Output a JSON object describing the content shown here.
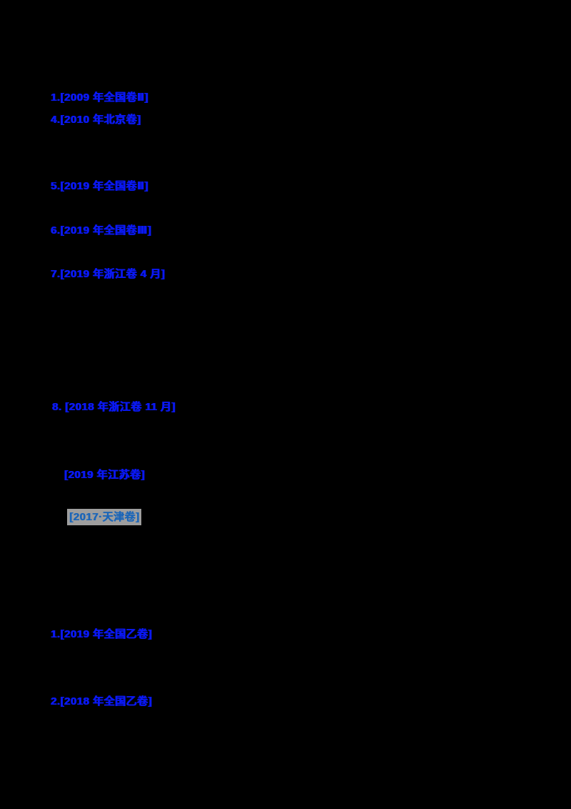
{
  "page": {
    "background_color": "#000000",
    "link_color": "#0a18f2",
    "highlight_background_color": "#9e9e9e",
    "highlight_link_color": "#1c66b8"
  },
  "links": [
    {
      "label": "1.[2009 年全国卷Ⅱ]",
      "highlighted": false
    },
    {
      "label": "4.[2010 年北京卷]",
      "highlighted": false
    },
    {
      "label": "5.[2019 年全国卷Ⅱ]",
      "highlighted": false
    },
    {
      "label": "6.[2019 年全国卷Ⅲ]",
      "highlighted": false
    },
    {
      "label": "7.[2019 年浙江卷 4 月]",
      "highlighted": false
    },
    {
      "label": "8. [2018 年浙江卷 11 月]",
      "highlighted": false
    },
    {
      "label": "[2019 年江苏卷]",
      "highlighted": false
    },
    {
      "label": "[2017·天津卷]",
      "highlighted": true
    },
    {
      "label": "1.[2019 年全国乙卷]",
      "highlighted": false
    },
    {
      "label": "2.[2018 年全国乙卷]",
      "highlighted": false
    }
  ]
}
